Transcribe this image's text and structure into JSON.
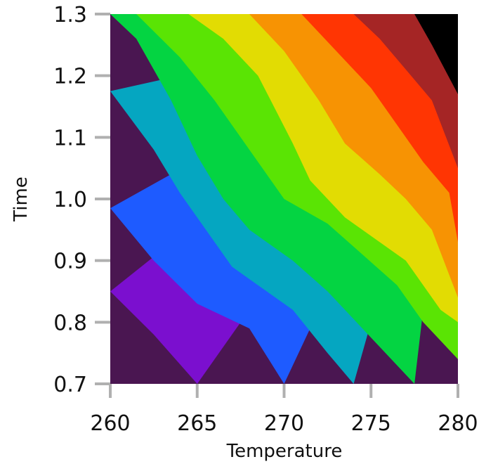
{
  "chart_data": {
    "type": "heatmap",
    "subtype": "filled-contour",
    "title": "",
    "xlabel": "Temperature",
    "ylabel": "Time",
    "xlim": [
      260,
      280
    ],
    "ylim": [
      0.7,
      1.3
    ],
    "x_ticks": [
      "260",
      "265",
      "270",
      "275",
      "280"
    ],
    "y_ticks": [
      "0.7",
      "0.8",
      "0.9",
      "1.0",
      "1.1",
      "1.2",
      "1.3"
    ],
    "grid": false,
    "legend": "none",
    "level_colors": [
      "#4a1651",
      "#7b0fcf",
      "#1e5bff",
      "#05a6c1",
      "#04d442",
      "#5ae404",
      "#e2dc03",
      "#f79303",
      "#ff3503",
      "#a52525"
    ],
    "boundaries": [
      {
        "level": 1,
        "points": [
          [
            260,
            0.85
          ],
          [
            262.5,
            0.78
          ],
          [
            265,
            0.7
          ]
        ]
      },
      {
        "level": 2,
        "points": [
          [
            260,
            0.985
          ],
          [
            262.5,
            0.9
          ],
          [
            265,
            0.83
          ],
          [
            268,
            0.79
          ],
          [
            270,
            0.7
          ]
        ]
      },
      {
        "level": 3,
        "points": [
          [
            260,
            1.175
          ],
          [
            262.5,
            1.08
          ],
          [
            264,
            1.01
          ],
          [
            265.5,
            0.95
          ],
          [
            267,
            0.89
          ],
          [
            268.5,
            0.86
          ],
          [
            270.5,
            0.82
          ],
          [
            272.5,
            0.75
          ],
          [
            274,
            0.7
          ]
        ]
      },
      {
        "level": 4,
        "points": [
          [
            260,
            1.3
          ],
          [
            261.5,
            1.26
          ],
          [
            263.5,
            1.16
          ],
          [
            265,
            1.07
          ],
          [
            266.5,
            1.0
          ],
          [
            268,
            0.95
          ],
          [
            270.5,
            0.9
          ],
          [
            272.5,
            0.85
          ],
          [
            274.5,
            0.79
          ],
          [
            277.5,
            0.7
          ]
        ]
      },
      {
        "level": 5,
        "points": [
          [
            261.5,
            1.3
          ],
          [
            264,
            1.23
          ],
          [
            266,
            1.16
          ],
          [
            268,
            1.08
          ],
          [
            270,
            1.0
          ],
          [
            272.5,
            0.96
          ],
          [
            274.5,
            0.91
          ],
          [
            276.5,
            0.86
          ],
          [
            278,
            0.8
          ],
          [
            280,
            0.74
          ]
        ]
      },
      {
        "level": 6,
        "points": [
          [
            264.5,
            1.3
          ],
          [
            266.5,
            1.26
          ],
          [
            268.5,
            1.2
          ],
          [
            270.5,
            1.09
          ],
          [
            271.5,
            1.03
          ],
          [
            273.5,
            0.97
          ],
          [
            275.5,
            0.93
          ],
          [
            277,
            0.9
          ],
          [
            279,
            0.82
          ],
          [
            280,
            0.8
          ]
        ]
      },
      {
        "level": 7,
        "points": [
          [
            268,
            1.3
          ],
          [
            270,
            1.24
          ],
          [
            272,
            1.16
          ],
          [
            273.5,
            1.09
          ],
          [
            275.5,
            1.04
          ],
          [
            277,
            1.0
          ],
          [
            278.5,
            0.95
          ],
          [
            280,
            0.84
          ]
        ]
      },
      {
        "level": 8,
        "points": [
          [
            271,
            1.3
          ],
          [
            273,
            1.24
          ],
          [
            275,
            1.18
          ],
          [
            276.5,
            1.12
          ],
          [
            278,
            1.06
          ],
          [
            279.5,
            1.01
          ],
          [
            280,
            0.93
          ]
        ]
      },
      {
        "level": 9,
        "points": [
          [
            274,
            1.3
          ],
          [
            275.5,
            1.26
          ],
          [
            277,
            1.21
          ],
          [
            278.5,
            1.16
          ],
          [
            280,
            1.05
          ]
        ]
      },
      {
        "level": 10,
        "points": [
          [
            277.5,
            1.3
          ],
          [
            278.5,
            1.25
          ],
          [
            280,
            1.17
          ]
        ]
      }
    ]
  }
}
